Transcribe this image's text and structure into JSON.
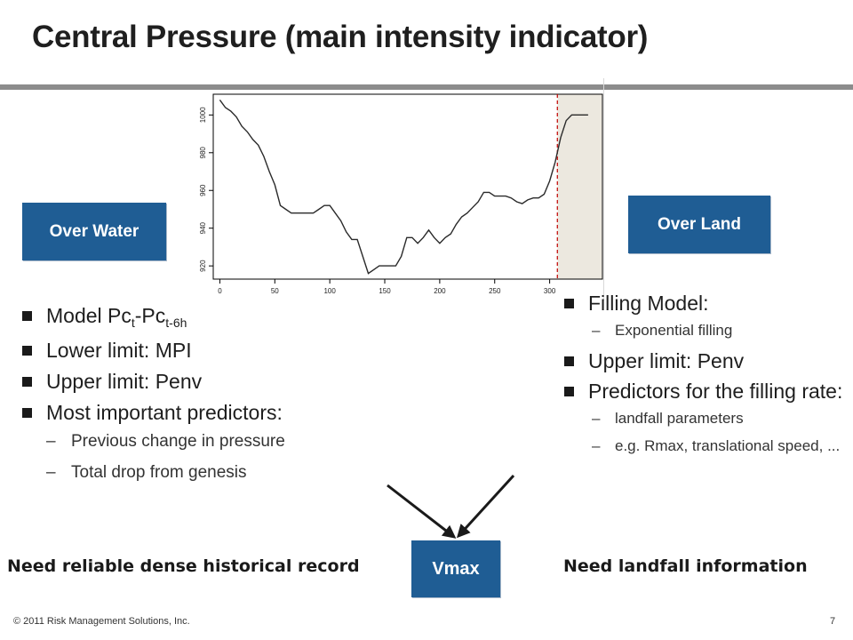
{
  "title": "Central Pressure (main intensity indicator)",
  "boxes": {
    "water": "Over Water",
    "land": "Over Land",
    "vmax": "Vmax"
  },
  "left_list": {
    "b1": {
      "text": "Model Pc",
      "sub1": "t",
      "mid": "-Pc",
      "sub2": "t-6h"
    },
    "b2": "Lower limit: MPI",
    "b3": "Upper limit: Penv",
    "b4": "Most important predictors:",
    "s1": "Previous change in pressure",
    "s2": "Total drop from genesis"
  },
  "right_list": {
    "b1": "Filling Model:",
    "s1": "Exponential filling",
    "b2": "Upper limit: Penv",
    "b3": "Predictors for the filling rate:",
    "s2": "landfall parameters",
    "s3": "e.g. Rmax, translational speed, ..."
  },
  "dash": "–",
  "notes": {
    "left": "Need reliable dense historical record",
    "right": "Need landfall information"
  },
  "footer": {
    "copyright": "© 2011 Risk Management Solutions, Inc.",
    "page": "7"
  },
  "colors": {
    "box": "#1f5d94",
    "landfall_shade": "#ece8df",
    "landfall_line": "#c00000",
    "series": "#2a2a2a"
  },
  "chart_data": {
    "type": "line",
    "xlim": [
      -6,
      348
    ],
    "ylim": [
      913,
      1011
    ],
    "xticks": [
      0,
      50,
      100,
      150,
      200,
      250,
      300
    ],
    "yticks": [
      920,
      940,
      960,
      980,
      1000
    ],
    "landfall_x": 307,
    "landfall_region": [
      307,
      348
    ],
    "series": [
      {
        "x": [
          0,
          5,
          10,
          15,
          20,
          25,
          30,
          35,
          40,
          45,
          50,
          55,
          60,
          65,
          70,
          75,
          80,
          85,
          90,
          95,
          100,
          105,
          110,
          115,
          120,
          125,
          130,
          135,
          140,
          145,
          150,
          155,
          160,
          165,
          170,
          175,
          180,
          185,
          190,
          195,
          200,
          205,
          210,
          215,
          220,
          225,
          230,
          235,
          240,
          245,
          250,
          255,
          260,
          265,
          270,
          275,
          280,
          285,
          290,
          295,
          300,
          305,
          310,
          315,
          320,
          325,
          330,
          335
        ],
        "values": [
          1008,
          1004,
          1002,
          999,
          994,
          991,
          987,
          984,
          978,
          970,
          963,
          952,
          950,
          948,
          948,
          948,
          948,
          948,
          950,
          952,
          952,
          948,
          944,
          938,
          934,
          934,
          925,
          916,
          918,
          920,
          920,
          920,
          920,
          925,
          935,
          935,
          932,
          935,
          939,
          935,
          932,
          935,
          937,
          942,
          946,
          948,
          951,
          954,
          959,
          959,
          957,
          957,
          957,
          956,
          954,
          953,
          955,
          956,
          956,
          958,
          965,
          975,
          988,
          997,
          1000,
          1000,
          1000,
          1000
        ]
      }
    ]
  }
}
